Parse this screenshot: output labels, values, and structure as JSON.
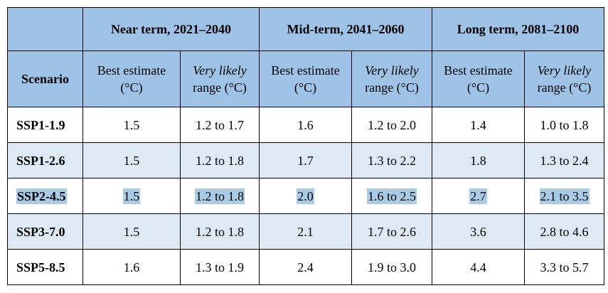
{
  "table": {
    "groups": [
      "Near term, 2021–2040",
      "Mid-term, 2041–2060",
      "Long term, 2081–2100"
    ],
    "scenario_header": "Scenario",
    "best_estimate_line1": "Best estimate",
    "best_estimate_line2": "(°C)",
    "likely_line1": "Very likely",
    "likely_line2": "range (°C)",
    "rows": [
      {
        "scenario": "SSP1-1.9",
        "values": [
          "1.5",
          "1.2 to 1.7",
          "1.6",
          "1.2 to 2.0",
          "1.4",
          "1.0 to 1.8"
        ]
      },
      {
        "scenario": "SSP1-2.6",
        "values": [
          "1.5",
          "1.2 to 1.8",
          "1.7",
          "1.3 to 2.2",
          "1.8",
          "1.3 to 2.4"
        ]
      },
      {
        "scenario": "SSP2-4.5",
        "values": [
          "1.5",
          "1.2 to 1.8",
          "2.0",
          "1.6 to 2.5",
          "2.7",
          "2.1 to 3.5"
        ]
      },
      {
        "scenario": "SSP3-7.0",
        "values": [
          "1.5",
          "1.2 to 1.8",
          "2.1",
          "1.7 to 2.6",
          "3.6",
          "2.8 to 4.6"
        ]
      },
      {
        "scenario": "SSP5-8.5",
        "values": [
          "1.6",
          "1.3 to 1.9",
          "2.4",
          "1.9 to 3.0",
          "4.4",
          "3.3 to 5.7"
        ]
      }
    ]
  },
  "colors": {
    "header_bg": "#9fc3e7",
    "alt_row_bg": "#dde9f5",
    "highlight": "#a9cbe6"
  }
}
